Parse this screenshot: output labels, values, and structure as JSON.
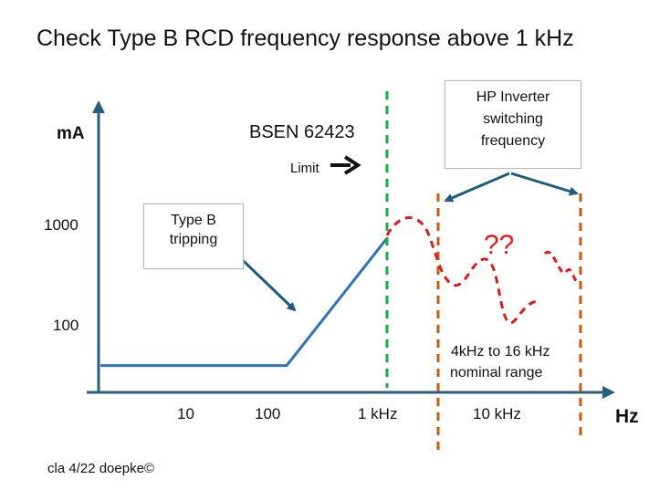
{
  "title": "Check Type B RCD frequency response above 1 kHz",
  "footer": "cla 4/22 doepke©",
  "colors": {
    "axis": "#2b5d7c",
    "response_line": "#2f73b5",
    "arrow": "#1f5c7c",
    "limit_line": "#1fa84a",
    "range_line": "#c55a11",
    "unknown_curve": "#d62020"
  },
  "chart_data": {
    "type": "line",
    "ylabel": "mA",
    "xlabel": "Hz",
    "yticks": [
      "1000",
      "100"
    ],
    "xticks": [
      "10",
      "100",
      "1 kHz",
      "10 kHz"
    ],
    "x_scale": "log",
    "y_scale": "log",
    "series": [
      {
        "x": [
          1,
          130,
          1000
        ],
        "y": [
          45,
          45,
          700
        ]
      }
    ],
    "annotations": {
      "standard_label": "BSEN 62423",
      "limit_label": "Limit",
      "unknown_label": "??",
      "range_label_1": "4kHz to 16 kHz",
      "range_label_2": "nominal range"
    }
  },
  "callouts": {
    "type_b_line1": "Type B",
    "type_b_line2": "tripping",
    "hp_line1": "HP Inverter",
    "hp_line2": "switching",
    "hp_line3": "frequency"
  }
}
